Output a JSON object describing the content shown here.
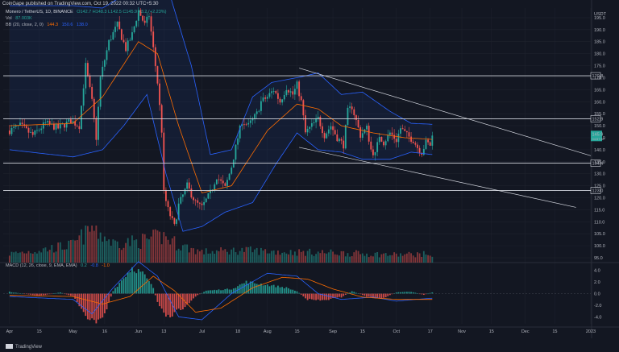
{
  "header": {
    "attribution": "CoinGape published on TradingView.com, Oct 19, 2022 00:32 UTC+5:30"
  },
  "legend": {
    "symbol": "Monero / TetherUS, 1D, BINANCE",
    "ohlc": "O142.7 H148.3 L142.5 C145.9 +3.2 (+2.23%)",
    "vol_label": "Vol",
    "vol_value": "87.003K",
    "bb_label": "BB (20, close, 2, 0)",
    "bb_mid": "144.3",
    "bb_upper": "150.6",
    "bb_lower": "138.0",
    "macd_label": "MACD (12, 26, close, 9, EMA, EMA)",
    "macd_hist": "0.2",
    "macd_line": "-0.8",
    "macd_signal": "-1.0"
  },
  "currency": "USDT",
  "footer": {
    "brand": "TradingView"
  },
  "colors": {
    "bg": "#131722",
    "up": "#26a69a",
    "down": "#ef5350",
    "bb_band": "#2962ff",
    "bb_mid": "#ff6d00",
    "macd": "#2962ff",
    "signal": "#ff6d00",
    "grid": "#1e222d",
    "level": "#d1d4dc"
  },
  "chart_data": [
    {
      "type": "candlestick",
      "title": "Monero / TetherUS, 1D, BINANCE",
      "ylabel": "USDT",
      "ylim": [
        93,
        199
      ],
      "yticks": [
        95,
        100,
        105,
        110,
        115,
        120,
        125,
        130,
        135,
        140,
        145,
        150,
        155,
        160,
        165,
        170,
        175,
        180,
        185,
        190,
        195
      ],
      "x_start": "2022-03-29",
      "x_end": "2023-01-01",
      "xticks": [
        {
          "date": "2022-04-01",
          "label": "Apr"
        },
        {
          "date": "2022-04-15",
          "label": "15"
        },
        {
          "date": "2022-05-01",
          "label": "May"
        },
        {
          "date": "2022-05-16",
          "label": "16"
        },
        {
          "date": "2022-06-01",
          "label": "Jun"
        },
        {
          "date": "2022-06-13",
          "label": "13"
        },
        {
          "date": "2022-07-01",
          "label": "Jul"
        },
        {
          "date": "2022-07-18",
          "label": "18"
        },
        {
          "date": "2022-08-01",
          "label": "Aug"
        },
        {
          "date": "2022-08-15",
          "label": "15"
        },
        {
          "date": "2022-09-01",
          "label": "Sep"
        },
        {
          "date": "2022-09-15",
          "label": "15"
        },
        {
          "date": "2022-10-01",
          "label": "Oct"
        },
        {
          "date": "2022-10-17",
          "label": "17"
        },
        {
          "date": "2022-11-01",
          "label": "Nov"
        },
        {
          "date": "2022-11-15",
          "label": "15"
        },
        {
          "date": "2022-12-01",
          "label": "Dec"
        },
        {
          "date": "2022-12-15",
          "label": "15"
        },
        {
          "date": "2023-01-01",
          "label": "2023"
        }
      ],
      "price_keypoints": [
        {
          "date": "2022-04-01",
          "close": 148
        },
        {
          "date": "2022-04-06",
          "close": 150
        },
        {
          "date": "2022-04-12",
          "close": 146
        },
        {
          "date": "2022-04-18",
          "close": 151
        },
        {
          "date": "2022-04-24",
          "close": 149
        },
        {
          "date": "2022-04-30",
          "close": 152
        },
        {
          "date": "2022-05-04",
          "close": 150
        },
        {
          "date": "2022-05-07",
          "close": 175
        },
        {
          "date": "2022-05-10",
          "close": 160
        },
        {
          "date": "2022-05-12",
          "close": 145
        },
        {
          "date": "2022-05-14",
          "close": 170
        },
        {
          "date": "2022-05-18",
          "close": 185
        },
        {
          "date": "2022-05-22",
          "close": 192
        },
        {
          "date": "2022-05-26",
          "close": 182
        },
        {
          "date": "2022-05-29",
          "close": 188
        },
        {
          "date": "2022-06-01",
          "close": 198
        },
        {
          "date": "2022-06-04",
          "close": 192
        },
        {
          "date": "2022-06-06",
          "close": 196
        },
        {
          "date": "2022-06-08",
          "close": 182
        },
        {
          "date": "2022-06-10",
          "close": 168
        },
        {
          "date": "2022-06-12",
          "close": 148
        },
        {
          "date": "2022-06-13",
          "close": 122
        },
        {
          "date": "2022-06-15",
          "close": 115
        },
        {
          "date": "2022-06-18",
          "close": 108
        },
        {
          "date": "2022-06-20",
          "close": 117
        },
        {
          "date": "2022-06-24",
          "close": 125
        },
        {
          "date": "2022-06-28",
          "close": 118
        },
        {
          "date": "2022-07-01",
          "close": 116
        },
        {
          "date": "2022-07-05",
          "close": 122
        },
        {
          "date": "2022-07-08",
          "close": 129
        },
        {
          "date": "2022-07-12",
          "close": 124
        },
        {
          "date": "2022-07-15",
          "close": 133
        },
        {
          "date": "2022-07-18",
          "close": 145
        },
        {
          "date": "2022-07-20",
          "close": 152
        },
        {
          "date": "2022-07-23",
          "close": 150
        },
        {
          "date": "2022-07-27",
          "close": 155
        },
        {
          "date": "2022-07-29",
          "close": 160
        },
        {
          "date": "2022-08-01",
          "close": 162
        },
        {
          "date": "2022-08-04",
          "close": 165
        },
        {
          "date": "2022-08-07",
          "close": 160
        },
        {
          "date": "2022-08-10",
          "close": 166
        },
        {
          "date": "2022-08-13",
          "close": 163
        },
        {
          "date": "2022-08-15",
          "close": 167
        },
        {
          "date": "2022-08-17",
          "close": 160
        },
        {
          "date": "2022-08-19",
          "close": 147
        },
        {
          "date": "2022-08-22",
          "close": 150
        },
        {
          "date": "2022-08-25",
          "close": 153
        },
        {
          "date": "2022-08-28",
          "close": 146
        },
        {
          "date": "2022-08-31",
          "close": 150
        },
        {
          "date": "2022-09-03",
          "close": 145
        },
        {
          "date": "2022-09-06",
          "close": 142
        },
        {
          "date": "2022-09-08",
          "close": 156
        },
        {
          "date": "2022-09-10",
          "close": 158
        },
        {
          "date": "2022-09-12",
          "close": 152
        },
        {
          "date": "2022-09-14",
          "close": 146
        },
        {
          "date": "2022-09-17",
          "close": 149
        },
        {
          "date": "2022-09-19",
          "close": 140
        },
        {
          "date": "2022-09-21",
          "close": 138
        },
        {
          "date": "2022-09-23",
          "close": 146
        },
        {
          "date": "2022-09-25",
          "close": 143
        },
        {
          "date": "2022-09-28",
          "close": 147
        },
        {
          "date": "2022-10-01",
          "close": 144
        },
        {
          "date": "2022-10-03",
          "close": 149
        },
        {
          "date": "2022-10-06",
          "close": 146
        },
        {
          "date": "2022-10-09",
          "close": 144
        },
        {
          "date": "2022-10-11",
          "close": 141
        },
        {
          "date": "2022-10-13",
          "close": 139
        },
        {
          "date": "2022-10-15",
          "close": 143
        },
        {
          "date": "2022-10-17",
          "close": 142
        },
        {
          "date": "2022-10-18",
          "close": 145.9
        }
      ],
      "bollinger_upper_keypoints": [
        {
          "date": "2022-04-01",
          "value": 200
        },
        {
          "date": "2022-05-01",
          "value": 200
        },
        {
          "date": "2022-05-15",
          "value": 199
        },
        {
          "date": "2022-06-01",
          "value": 208
        },
        {
          "date": "2022-06-15",
          "value": 207
        },
        {
          "date": "2022-06-26",
          "value": 175
        },
        {
          "date": "2022-07-05",
          "value": 138
        },
        {
          "date": "2022-07-15",
          "value": 140
        },
        {
          "date": "2022-07-25",
          "value": 162
        },
        {
          "date": "2022-08-03",
          "value": 168
        },
        {
          "date": "2022-08-15",
          "value": 170
        },
        {
          "date": "2022-08-25",
          "value": 172
        },
        {
          "date": "2022-09-05",
          "value": 163
        },
        {
          "date": "2022-09-15",
          "value": 164
        },
        {
          "date": "2022-09-28",
          "value": 156
        },
        {
          "date": "2022-10-08",
          "value": 151
        },
        {
          "date": "2022-10-18",
          "value": 150.6
        }
      ],
      "bollinger_lower_keypoints": [
        {
          "date": "2022-04-01",
          "value": 140
        },
        {
          "date": "2022-05-01",
          "value": 137
        },
        {
          "date": "2022-05-15",
          "value": 140
        },
        {
          "date": "2022-05-25",
          "value": 150
        },
        {
          "date": "2022-06-05",
          "value": 163
        },
        {
          "date": "2022-06-14",
          "value": 130
        },
        {
          "date": "2022-06-22",
          "value": 106
        },
        {
          "date": "2022-07-01",
          "value": 108
        },
        {
          "date": "2022-07-12",
          "value": 114
        },
        {
          "date": "2022-07-25",
          "value": 118
        },
        {
          "date": "2022-08-05",
          "value": 134
        },
        {
          "date": "2022-08-15",
          "value": 147
        },
        {
          "date": "2022-08-25",
          "value": 140
        },
        {
          "date": "2022-09-05",
          "value": 139
        },
        {
          "date": "2022-09-15",
          "value": 136
        },
        {
          "date": "2022-09-28",
          "value": 136
        },
        {
          "date": "2022-10-08",
          "value": 139
        },
        {
          "date": "2022-10-18",
          "value": 138
        }
      ],
      "bollinger_basis_keypoints": [
        {
          "date": "2022-04-01",
          "value": 150
        },
        {
          "date": "2022-05-01",
          "value": 151
        },
        {
          "date": "2022-05-15",
          "value": 162
        },
        {
          "date": "2022-06-01",
          "value": 185
        },
        {
          "date": "2022-06-10",
          "value": 180
        },
        {
          "date": "2022-06-20",
          "value": 150
        },
        {
          "date": "2022-07-01",
          "value": 122
        },
        {
          "date": "2022-07-15",
          "value": 125
        },
        {
          "date": "2022-08-01",
          "value": 148
        },
        {
          "date": "2022-08-15",
          "value": 159
        },
        {
          "date": "2022-08-25",
          "value": 157
        },
        {
          "date": "2022-09-05",
          "value": 150
        },
        {
          "date": "2022-09-20",
          "value": 147
        },
        {
          "date": "2022-10-05",
          "value": 145
        },
        {
          "date": "2022-10-18",
          "value": 144.3
        }
      ],
      "horizontal_levels": [
        170.8,
        152.9,
        134.4,
        123.0
      ],
      "channel_upper_line": [
        {
          "date": "2022-08-16",
          "value": 174
        },
        {
          "date": "2023-01-01",
          "value": 137.5
        }
      ],
      "channel_lower_line": [
        {
          "date": "2022-08-16",
          "value": 141
        },
        {
          "date": "2022-12-25",
          "value": 116
        }
      ],
      "last_price": 145.9,
      "last_price_countdown": "04:57:57"
    },
    {
      "type": "bar",
      "title": "Vol",
      "series": [
        {
          "name": "Vol",
          "last_value": 87003
        }
      ],
      "volume_keypoints": [
        {
          "date": "2022-04-01",
          "value": 0.25
        },
        {
          "date": "2022-04-15",
          "value": 0.35
        },
        {
          "date": "2022-05-01",
          "value": 0.5
        },
        {
          "date": "2022-05-10",
          "value": 1.0
        },
        {
          "date": "2022-05-20",
          "value": 0.55
        },
        {
          "date": "2022-06-01",
          "value": 0.6
        },
        {
          "date": "2022-06-13",
          "value": 0.75
        },
        {
          "date": "2022-06-20",
          "value": 0.5
        },
        {
          "date": "2022-07-01",
          "value": 0.3
        },
        {
          "date": "2022-07-20",
          "value": 0.35
        },
        {
          "date": "2022-08-10",
          "value": 0.3
        },
        {
          "date": "2022-09-01",
          "value": 0.28
        },
        {
          "date": "2022-10-01",
          "value": 0.22
        },
        {
          "date": "2022-10-18",
          "value": 0.25
        }
      ]
    },
    {
      "type": "bar",
      "title": "MACD (12, 26, close, 9, EMA, EMA)",
      "ylim": [
        -5.2,
        5.2
      ],
      "yticks": [
        -4.0,
        -2.0,
        0.0,
        2.0,
        4.0
      ],
      "series": [
        {
          "name": "Histogram",
          "last_value": 0.2
        },
        {
          "name": "MACD",
          "last_value": -0.8
        },
        {
          "name": "Signal",
          "last_value": -1.0
        }
      ],
      "histogram_keypoints": [
        {
          "date": "2022-04-01",
          "value": 0.3
        },
        {
          "date": "2022-04-15",
          "value": -0.4
        },
        {
          "date": "2022-04-25",
          "value": 0.2
        },
        {
          "date": "2022-05-01",
          "value": -0.5
        },
        {
          "date": "2022-05-06",
          "value": -3.0
        },
        {
          "date": "2022-05-10",
          "value": -5.0
        },
        {
          "date": "2022-05-16",
          "value": -3.5
        },
        {
          "date": "2022-05-20",
          "value": 0.5
        },
        {
          "date": "2022-05-29",
          "value": 4.5
        },
        {
          "date": "2022-06-03",
          "value": 3.5
        },
        {
          "date": "2022-06-08",
          "value": 1.0
        },
        {
          "date": "2022-06-10",
          "value": -1.5
        },
        {
          "date": "2022-06-14",
          "value": -4.5
        },
        {
          "date": "2022-06-20",
          "value": -3.0
        },
        {
          "date": "2022-06-28",
          "value": -0.5
        },
        {
          "date": "2022-07-03",
          "value": 0.5
        },
        {
          "date": "2022-07-15",
          "value": 0.8
        },
        {
          "date": "2022-07-22",
          "value": 2.0
        },
        {
          "date": "2022-08-01",
          "value": 1.5
        },
        {
          "date": "2022-08-10",
          "value": 1.0
        },
        {
          "date": "2022-08-15",
          "value": 0.4
        },
        {
          "date": "2022-08-20",
          "value": -1.0
        },
        {
          "date": "2022-08-27",
          "value": -1.2
        },
        {
          "date": "2022-09-05",
          "value": -0.6
        },
        {
          "date": "2022-09-10",
          "value": 0.4
        },
        {
          "date": "2022-09-18",
          "value": -0.6
        },
        {
          "date": "2022-09-24",
          "value": -0.9
        },
        {
          "date": "2022-10-01",
          "value": 0.2
        },
        {
          "date": "2022-10-08",
          "value": 0.3
        },
        {
          "date": "2022-10-14",
          "value": -0.2
        },
        {
          "date": "2022-10-18",
          "value": 0.2
        }
      ],
      "macd_keypoints": [
        {
          "date": "2022-04-01",
          "value": -0.5
        },
        {
          "date": "2022-05-01",
          "value": -1.0
        },
        {
          "date": "2022-05-10",
          "value": -3.5
        },
        {
          "date": "2022-05-20",
          "value": 1.0
        },
        {
          "date": "2022-06-01",
          "value": 5.5
        },
        {
          "date": "2022-06-10",
          "value": 3.0
        },
        {
          "date": "2022-06-20",
          "value": -4.0
        },
        {
          "date": "2022-07-01",
          "value": -4.5
        },
        {
          "date": "2022-07-15",
          "value": 0.0
        },
        {
          "date": "2022-08-01",
          "value": 3.5
        },
        {
          "date": "2022-08-15",
          "value": 3.0
        },
        {
          "date": "2022-08-25",
          "value": 0.0
        },
        {
          "date": "2022-09-05",
          "value": -1.0
        },
        {
          "date": "2022-09-20",
          "value": -0.6
        },
        {
          "date": "2022-10-01",
          "value": -1.3
        },
        {
          "date": "2022-10-10",
          "value": -1.0
        },
        {
          "date": "2022-10-18",
          "value": -0.8
        }
      ],
      "signal_keypoints": [
        {
          "date": "2022-04-01",
          "value": -0.3
        },
        {
          "date": "2022-05-01",
          "value": -0.5
        },
        {
          "date": "2022-05-15",
          "value": -1.8
        },
        {
          "date": "2022-05-28",
          "value": -0.5
        },
        {
          "date": "2022-06-08",
          "value": 3.0
        },
        {
          "date": "2022-06-18",
          "value": 0.5
        },
        {
          "date": "2022-06-28",
          "value": -3.2
        },
        {
          "date": "2022-07-10",
          "value": -2.5
        },
        {
          "date": "2022-07-25",
          "value": 1.0
        },
        {
          "date": "2022-08-08",
          "value": 2.8
        },
        {
          "date": "2022-08-20",
          "value": 2.5
        },
        {
          "date": "2022-09-01",
          "value": 0.8
        },
        {
          "date": "2022-09-15",
          "value": -0.6
        },
        {
          "date": "2022-10-01",
          "value": -1.0
        },
        {
          "date": "2022-10-18",
          "value": -1.0
        }
      ]
    }
  ]
}
